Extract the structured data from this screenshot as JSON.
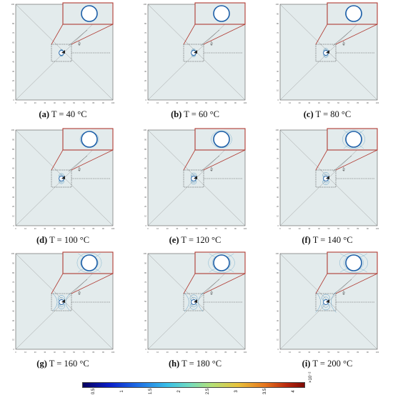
{
  "figure": {
    "panels": [
      {
        "label": "(a)",
        "caption": " T = 40 °C",
        "stage": 0
      },
      {
        "label": "(b)",
        "caption": " T = 60 °C",
        "stage": 1
      },
      {
        "label": "(c)",
        "caption": " T = 80 °C",
        "stage": 2
      },
      {
        "label": "(d)",
        "caption": " T = 100 °C",
        "stage": 3
      },
      {
        "label": "(e)",
        "caption": " T = 120 °C",
        "stage": 4
      },
      {
        "label": "(f)",
        "caption": " T = 140 °C",
        "stage": 5
      },
      {
        "label": "(g)",
        "caption": " T = 160 °C",
        "stage": 6
      },
      {
        "label": "(h)",
        "caption": " T = 180 °C",
        "stage": 7
      },
      {
        "label": "(i)",
        "caption": " T = 200 °C",
        "stage": 8
      }
    ],
    "angle_label": "45°",
    "axis_ticks": [
      "0",
      "10",
      "20",
      "30",
      "40",
      "50",
      "60",
      "70",
      "80",
      "90",
      "100"
    ],
    "colors": {
      "plate_fill": "#e3ebec",
      "zoom_frame": "#b03a32",
      "contour": "#3b86b8",
      "hole_edge": "#1d5fa8"
    }
  },
  "colorbar": {
    "ticks": [
      "0.5",
      "1",
      "1.5",
      "2",
      "2.5",
      "3",
      "3.5",
      "4"
    ],
    "exponent": "×10⁻²",
    "min": 0.3,
    "max": 4.2
  }
}
